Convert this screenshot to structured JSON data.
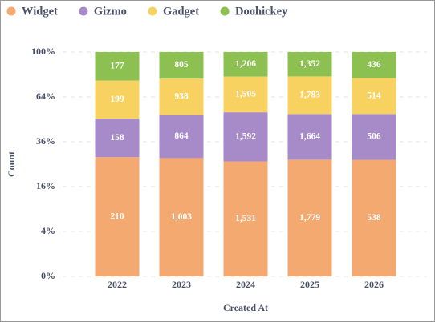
{
  "chart_data": {
    "type": "bar",
    "stack": "percent",
    "yscale": "sqrt",
    "x_label": "Created At",
    "y_label": "Count",
    "categories": [
      "2022",
      "2023",
      "2024",
      "2025",
      "2026"
    ],
    "series": [
      {
        "name": "Widget",
        "color": "#f4a970",
        "values": [
          210,
          1003,
          1531,
          1779,
          538
        ],
        "value_labels": [
          "210",
          "1,003",
          "1,531",
          "1,779",
          "538"
        ]
      },
      {
        "name": "Gizmo",
        "color": "#a78bc8",
        "values": [
          158,
          864,
          1592,
          1664,
          506
        ],
        "value_labels": [
          "158",
          "864",
          "1,592",
          "1,664",
          "506"
        ]
      },
      {
        "name": "Gadget",
        "color": "#f8d260",
        "values": [
          199,
          938,
          1505,
          1783,
          514
        ],
        "value_labels": [
          "199",
          "938",
          "1,505",
          "1,783",
          "514"
        ]
      },
      {
        "name": "Doohickey",
        "color": "#8cc152",
        "values": [
          177,
          805,
          1206,
          1352,
          436
        ],
        "value_labels": [
          "177",
          "805",
          "1,206",
          "1,352",
          "436"
        ]
      }
    ],
    "ylim": [
      0,
      100
    ],
    "yticks": [
      {
        "value": 0,
        "label": "0%"
      },
      {
        "value": 4,
        "label": "4%"
      },
      {
        "value": 16,
        "label": "16%"
      },
      {
        "value": 36,
        "label": "36%"
      },
      {
        "value": 64,
        "label": "64%"
      },
      {
        "value": 100,
        "label": "100%"
      }
    ],
    "grid": true,
    "legend": "top-left"
  }
}
